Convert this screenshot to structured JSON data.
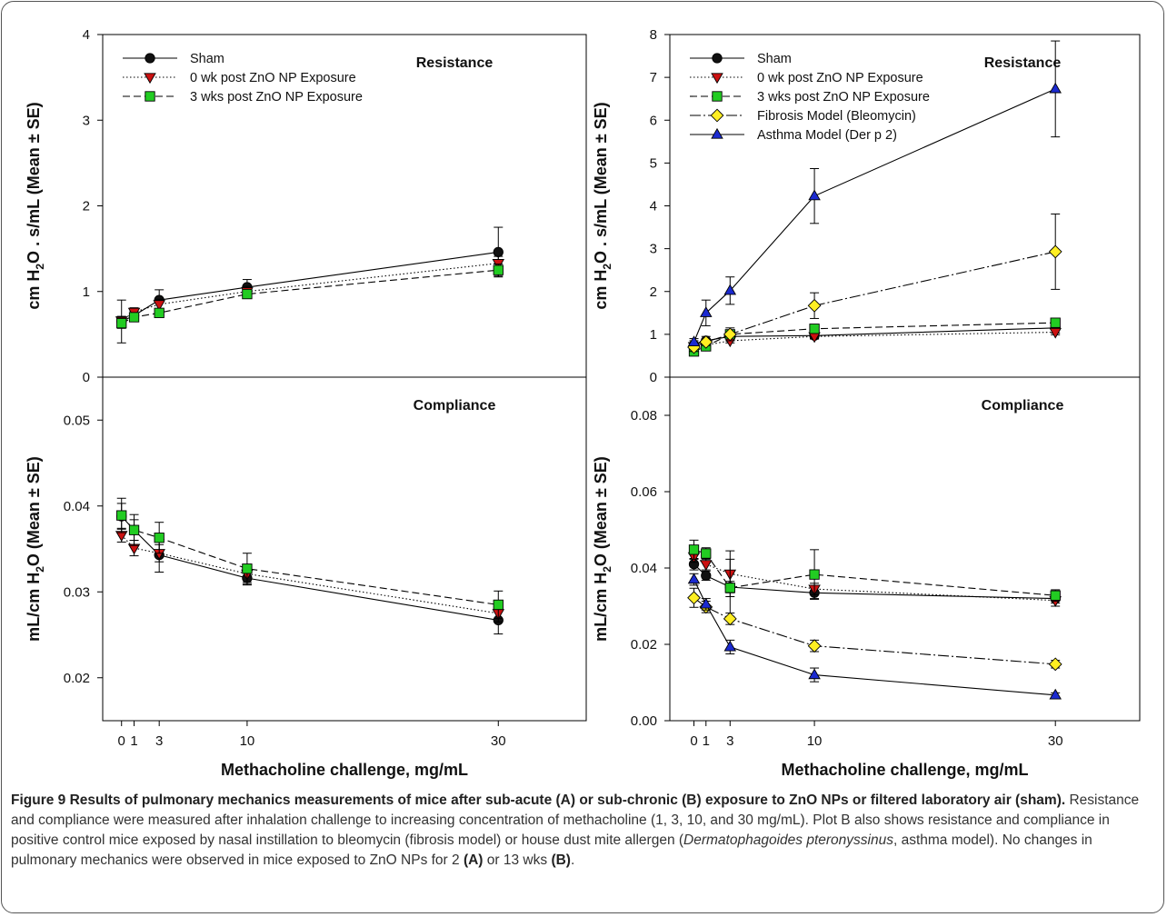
{
  "figure": {
    "xlabel": "Methacholine challenge, mg/mL",
    "x_ticks": [
      0,
      1,
      3,
      10,
      30
    ],
    "ylabel_resistance": "cm H2O . s/mL (Mean ± SE)",
    "ylabel_resistance_parts": [
      "cm H",
      "2",
      "O . s/mL (Mean ± SE)"
    ],
    "ylabel_compliance": "mL/cm H2O (Mean ± SE)",
    "ylabel_compliance_parts": [
      "mL/cm H",
      "2",
      "O (Mean ± SE)"
    ]
  },
  "chart_data": [
    {
      "id": "A-resistance",
      "type": "line",
      "title": "Resistance",
      "x": [
        0,
        1,
        3,
        10,
        30
      ],
      "ylim": [
        0,
        4
      ],
      "y_ticks": [
        0,
        1,
        2,
        3,
        4
      ],
      "y_tick_labels": [
        "0",
        "1",
        "2",
        "3",
        "4"
      ],
      "legend_position": "top-left",
      "series": [
        {
          "name": "Sham",
          "marker": "circle",
          "color": "#111111",
          "dash": "",
          "values": [
            0.65,
            0.72,
            0.9,
            1.05,
            1.46
          ],
          "err": [
            0.25,
            0.05,
            0.12,
            0.09,
            0.29
          ]
        },
        {
          "name": "0 wk post ZnO NP Exposure",
          "marker": "tri-down",
          "color": "#cc1111",
          "dash": "1.5,2.5",
          "values": [
            0.66,
            0.76,
            0.85,
            1.0,
            1.33
          ],
          "err": [
            0.05,
            0.05,
            0.06,
            0.06,
            0.08
          ]
        },
        {
          "name": "3 wks post ZnO NP Exposure",
          "marker": "square",
          "color": "#22cc22",
          "dash": "8,4",
          "values": [
            0.63,
            0.7,
            0.75,
            0.97,
            1.25
          ],
          "err": [
            0.06,
            0.04,
            0.05,
            0.05,
            0.07
          ]
        }
      ]
    },
    {
      "id": "A-compliance",
      "type": "line",
      "title": "Compliance",
      "x": [
        0,
        1,
        3,
        10,
        30
      ],
      "ylim": [
        0.015,
        0.055
      ],
      "y_ticks": [
        0.02,
        0.03,
        0.04,
        0.05
      ],
      "y_tick_labels": [
        "0.02",
        "0.03",
        "0.04",
        "0.05"
      ],
      "series": [
        {
          "name": "Sham",
          "marker": "circle",
          "color": "#111111",
          "dash": "",
          "values": [
            0.0388,
            0.0372,
            0.0343,
            0.0316,
            0.0267
          ],
          "err": [
            0.0015,
            0.0012,
            0.002,
            0.0008,
            0.0016
          ]
        },
        {
          "name": "0 wk post ZnO NP Exposure",
          "marker": "tri-down",
          "color": "#cc1111",
          "dash": "1.5,2.5",
          "values": [
            0.0366,
            0.0351,
            0.0345,
            0.0321,
            0.0275
          ],
          "err": [
            0.0008,
            0.0009,
            0.001,
            0.001,
            0.001
          ]
        },
        {
          "name": "3 wks post ZnO NP Exposure",
          "marker": "square",
          "color": "#22cc22",
          "dash": "8,4",
          "values": [
            0.0389,
            0.0372,
            0.0363,
            0.0327,
            0.0285
          ],
          "err": [
            0.002,
            0.0018,
            0.0018,
            0.0018,
            0.0016
          ]
        }
      ]
    },
    {
      "id": "B-resistance",
      "type": "line",
      "title": "Resistance",
      "x": [
        0,
        1,
        3,
        10,
        30
      ],
      "ylim": [
        0,
        8
      ],
      "y_ticks": [
        0,
        1,
        2,
        3,
        4,
        5,
        6,
        7,
        8
      ],
      "y_tick_labels": [
        "0",
        "1",
        "2",
        "3",
        "4",
        "5",
        "6",
        "7",
        "8"
      ],
      "legend_position": "top-left",
      "series": [
        {
          "name": "Sham",
          "marker": "circle",
          "color": "#111111",
          "dash": "",
          "values": [
            0.75,
            0.85,
            0.95,
            0.97,
            1.15
          ],
          "err": [
            0.1,
            0.1,
            0.1,
            0.08,
            0.12
          ]
        },
        {
          "name": "0 wk post ZnO NP Exposure",
          "marker": "tri-down",
          "color": "#cc1111",
          "dash": "1.5,2.5",
          "values": [
            0.72,
            0.75,
            0.85,
            0.95,
            1.05
          ],
          "err": [
            0.05,
            0.05,
            0.05,
            0.05,
            0.06
          ]
        },
        {
          "name": "3 wks post ZnO NP Exposure",
          "marker": "square",
          "color": "#22cc22",
          "dash": "8,4",
          "values": [
            0.6,
            0.72,
            1.0,
            1.13,
            1.27
          ],
          "err": [
            0.05,
            0.06,
            0.1,
            0.1,
            0.08
          ]
        },
        {
          "name": "Fibrosis Model (Bleomycin)",
          "marker": "diamond",
          "color": "#ffee22",
          "dash": "12,3,2,3",
          "values": [
            0.7,
            0.82,
            1.0,
            1.67,
            2.93
          ],
          "err": [
            0.1,
            0.08,
            0.15,
            0.3,
            0.88
          ]
        },
        {
          "name": "Asthma Model (Der p 2)",
          "marker": "tri-up",
          "color": "#1b2ad0",
          "dash": "",
          "values": [
            0.82,
            1.5,
            2.02,
            4.23,
            6.73
          ],
          "err": [
            0.08,
            0.3,
            0.32,
            0.64,
            1.12
          ]
        }
      ]
    },
    {
      "id": "B-compliance",
      "type": "line",
      "title": "Compliance",
      "x": [
        0,
        1,
        3,
        10,
        30
      ],
      "ylim": [
        0,
        0.09
      ],
      "y_ticks": [
        0,
        0.02,
        0.04,
        0.06,
        0.08
      ],
      "y_tick_labels": [
        "0.00",
        "0.02",
        "0.04",
        "0.06",
        "0.08"
      ],
      "series": [
        {
          "name": "Sham",
          "marker": "circle",
          "color": "#111111",
          "dash": "",
          "values": [
            0.041,
            0.038,
            0.035,
            0.0335,
            0.032
          ],
          "err": [
            0.0015,
            0.0012,
            0.0015,
            0.0015,
            0.0012
          ]
        },
        {
          "name": "0 wk post ZnO NP Exposure",
          "marker": "tri-down",
          "color": "#cc1111",
          "dash": "1.5,2.5",
          "values": [
            0.043,
            0.041,
            0.0385,
            0.0345,
            0.0315
          ],
          "err": [
            0.0015,
            0.0015,
            0.006,
            0.0015,
            0.0015
          ]
        },
        {
          "name": "3 wks post ZnO NP Exposure",
          "marker": "square",
          "color": "#22cc22",
          "dash": "8,4",
          "values": [
            0.0448,
            0.0438,
            0.0348,
            0.0383,
            0.0328
          ],
          "err": [
            0.0025,
            0.0015,
            0.0075,
            0.0065,
            0.0015
          ]
        },
        {
          "name": "Fibrosis Model (Bleomycin)",
          "marker": "diamond",
          "color": "#ffee22",
          "dash": "12,3,2,3",
          "values": [
            0.0322,
            0.0298,
            0.0267,
            0.0196,
            0.0148
          ],
          "err": [
            0.0025,
            0.0015,
            0.0015,
            0.0015,
            0.001
          ]
        },
        {
          "name": "Asthma Model (Der p 2)",
          "marker": "tri-up",
          "color": "#1b2ad0",
          "dash": "",
          "values": [
            0.037,
            0.0305,
            0.0193,
            0.012,
            0.0067
          ],
          "err": [
            0.0015,
            0.0015,
            0.0018,
            0.0018,
            0.0006
          ]
        }
      ]
    }
  ],
  "caption": {
    "title": "Figure 9 Results of pulmonary mechanics measurements of mice after sub-acute (A) or sub-chronic (B) exposure to ZnO NPs or filtered laboratory air (sham).",
    "body_1": "Resistance and compliance were measured after inhalation challenge to increasing concentration of methacholine (1, 3, 10, and 30 mg/mL). Plot B also shows resistance and compliance in positive control mice exposed by nasal instillation to bleomycin (fibrosis model) or house dust mite allergen (",
    "species": "Dermatophagoides pteronyssinus",
    "body_2": ", asthma model). No changes in pulmonary mechanics were observed in mice exposed to ZnO NPs for 2 ",
    "label_a": "(A)",
    "body_3": " or 13 wks ",
    "label_b": "(B)",
    "body_4": "."
  }
}
